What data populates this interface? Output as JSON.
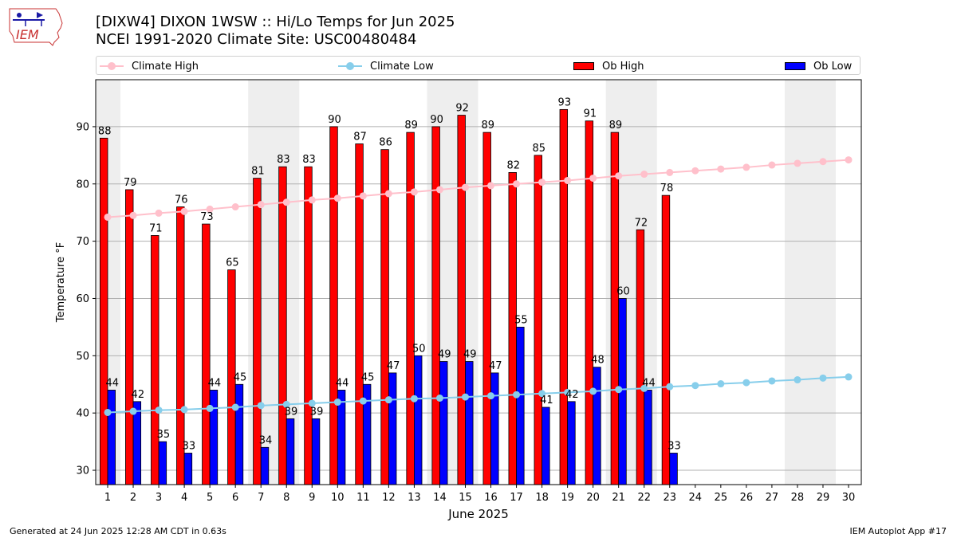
{
  "header": {
    "title_line1": "[DIXW4] DIXON 1WSW :: Hi/Lo Temps for Jun 2025",
    "title_line2": "NCEI 1991-2020 Climate Site: USC00480484"
  },
  "logo": {
    "text": "IEM"
  },
  "legend": {
    "climate_high": "Climate High",
    "climate_low": "Climate Low",
    "ob_high": "Ob High",
    "ob_low": "Ob Low"
  },
  "footer": {
    "generated": "Generated at 24 Jun 2025 12:28 AM CDT in 0.63s",
    "app": "IEM Autoplot App #17"
  },
  "colors": {
    "ob_high": "#ff0000",
    "ob_low": "#0000ff",
    "climate_high": "#ffc0cb",
    "climate_low": "#87ceeb",
    "weekend_shade": "#eeeeee",
    "grid": "#b0b0b0"
  },
  "chart_data": {
    "type": "bar",
    "xlabel": "June 2025",
    "ylabel": "Temperature °F",
    "ylim": [
      27.5,
      98.2
    ],
    "yticks": [
      30,
      40,
      50,
      60,
      70,
      80,
      90
    ],
    "grid": "horizontal",
    "legend_position": "top",
    "days": [
      1,
      2,
      3,
      4,
      5,
      6,
      7,
      8,
      9,
      10,
      11,
      12,
      13,
      14,
      15,
      16,
      17,
      18,
      19,
      20,
      21,
      22,
      23,
      24,
      25,
      26,
      27,
      28,
      29,
      30
    ],
    "weekend_spans": [
      [
        1,
        1
      ],
      [
        7,
        8
      ],
      [
        14,
        15
      ],
      [
        21,
        22
      ],
      [
        28,
        29
      ]
    ],
    "series": [
      {
        "name": "Ob High",
        "kind": "bar",
        "values": [
          88,
          79,
          71,
          76,
          73,
          65,
          81,
          83,
          83,
          90,
          87,
          86,
          89,
          90,
          92,
          89,
          82,
          85,
          93,
          91,
          89,
          72,
          78
        ],
        "labels": [
          "88",
          "79",
          "71",
          "76",
          "73",
          "65",
          "81",
          "83",
          "83",
          "90",
          "87",
          "86",
          "89",
          "90",
          "92",
          "89",
          "82",
          "85",
          "93",
          "91",
          "89",
          "72",
          "78"
        ]
      },
      {
        "name": "Ob Low",
        "kind": "bar",
        "values": [
          44,
          42,
          35,
          33,
          44,
          45,
          34,
          39,
          39,
          44,
          45,
          47,
          50,
          49,
          49,
          47,
          55,
          41,
          42,
          48,
          60,
          44,
          33
        ],
        "labels": [
          "44",
          "42",
          "35",
          "33",
          "44",
          "45",
          "34",
          "39",
          "39",
          "44",
          "45",
          "47",
          "50",
          "49",
          "49",
          "47",
          "55",
          "41",
          "42",
          "48",
          "60",
          "44",
          "33"
        ]
      },
      {
        "name": "Climate High",
        "kind": "line",
        "values": [
          74.2,
          74.5,
          74.9,
          75.2,
          75.6,
          76.0,
          76.4,
          76.8,
          77.2,
          77.5,
          77.9,
          78.3,
          78.6,
          79.0,
          79.4,
          79.7,
          80.0,
          80.3,
          80.6,
          81.0,
          81.4,
          81.7,
          82.0,
          82.3,
          82.6,
          82.9,
          83.3,
          83.6,
          83.9,
          84.2
        ]
      },
      {
        "name": "Climate Low",
        "kind": "line",
        "values": [
          40.1,
          40.3,
          40.5,
          40.6,
          40.8,
          41.0,
          41.3,
          41.5,
          41.7,
          41.9,
          42.1,
          42.3,
          42.5,
          42.6,
          42.8,
          43.0,
          43.2,
          43.4,
          43.6,
          43.8,
          44.1,
          44.3,
          44.6,
          44.8,
          45.1,
          45.3,
          45.6,
          45.8,
          46.1,
          46.3
        ]
      }
    ]
  }
}
